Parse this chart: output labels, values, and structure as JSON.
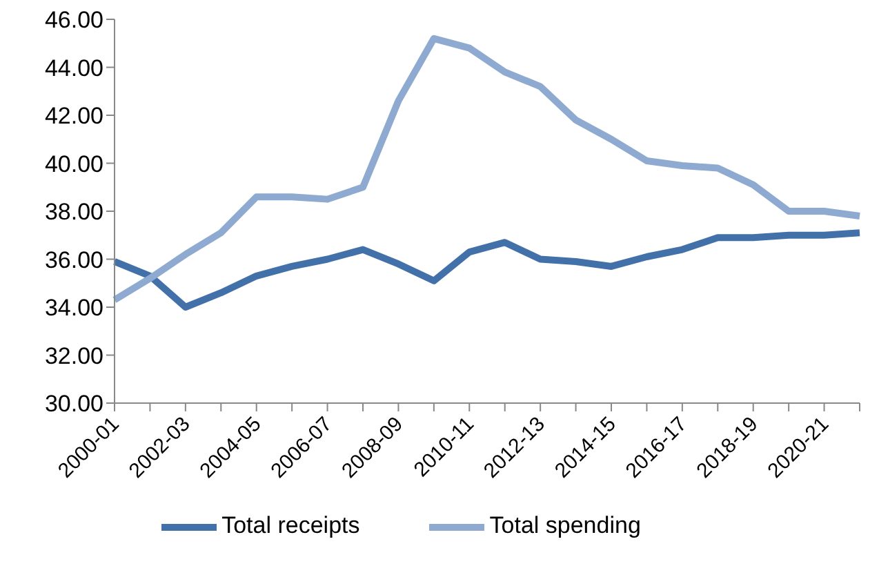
{
  "chart_data": {
    "type": "line",
    "categories": [
      "2000-01",
      null,
      "2002-03",
      null,
      "2004-05",
      null,
      "2006-07",
      null,
      "2008-09",
      null,
      "2010-11",
      null,
      "2012-13",
      null,
      "2014-15",
      null,
      "2016-17",
      null,
      "2018-19",
      null,
      "2020-21",
      null
    ],
    "series": [
      {
        "name": "Total receipts",
        "color": "#4270a8",
        "values": [
          35.9,
          35.3,
          34.0,
          34.6,
          35.3,
          35.7,
          36.0,
          36.4,
          35.8,
          35.1,
          36.3,
          36.7,
          36.0,
          35.9,
          35.7,
          36.1,
          36.4,
          36.9,
          36.9,
          37.0,
          37.0,
          37.1
        ]
      },
      {
        "name": "Total spending",
        "color": "#8eaad1",
        "values": [
          34.3,
          35.2,
          36.2,
          37.1,
          38.6,
          38.6,
          38.5,
          39.0,
          42.6,
          45.2,
          44.8,
          43.8,
          43.2,
          41.8,
          41.0,
          40.1,
          39.9,
          39.8,
          39.1,
          38.0,
          38.0,
          37.8
        ]
      }
    ],
    "ylim": [
      30,
      46
    ],
    "yticks": [
      {
        "value": 30,
        "label": "30.00"
      },
      {
        "value": 32,
        "label": "32.00"
      },
      {
        "value": 34,
        "label": "34.00"
      },
      {
        "value": 36,
        "label": "36.00"
      },
      {
        "value": 38,
        "label": "38.00"
      },
      {
        "value": 40,
        "label": "40.00"
      },
      {
        "value": 42,
        "label": "42.00"
      },
      {
        "value": 44,
        "label": "44.00"
      },
      {
        "value": 46,
        "label": "46.00"
      }
    ],
    "grid": false,
    "legend": "bottom",
    "marker": "none",
    "line_style": "solid"
  }
}
